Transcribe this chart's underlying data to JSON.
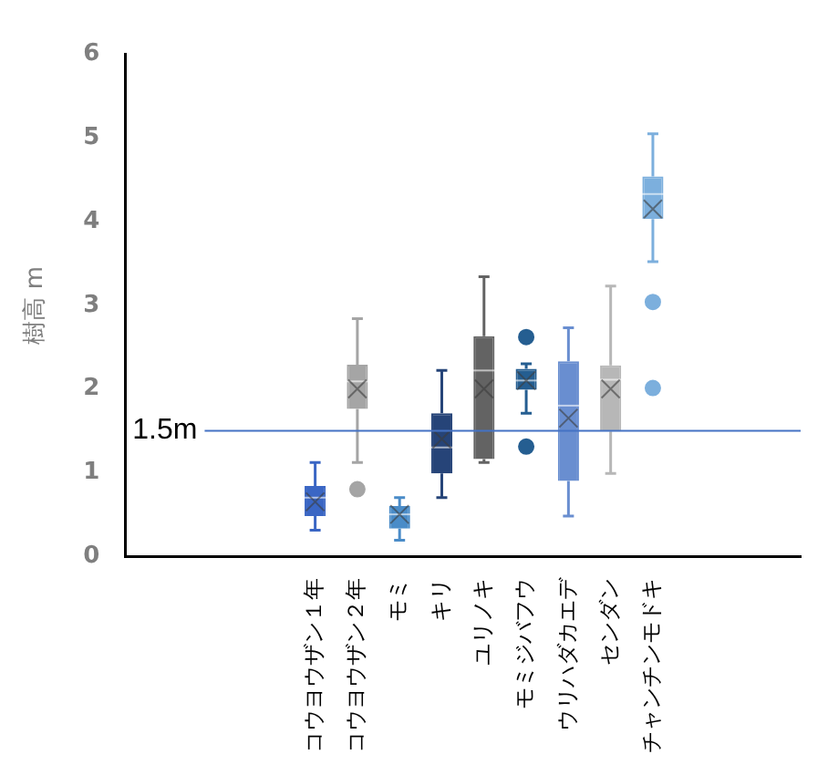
{
  "chart_data": {
    "type": "box",
    "ylabel": "樹高 m",
    "categories": [
      null,
      null,
      null,
      null,
      "コウヨウザン１年",
      "コウヨウザン２年",
      "モミ",
      "キリ",
      "ユリノキ",
      "モミジバフウ",
      "ウリハダカエデ",
      "センダン",
      "チャンチンモドキ",
      null,
      null,
      null
    ],
    "boxes": [
      null,
      null,
      null,
      null,
      {
        "low": 0.31,
        "q1": 0.48,
        "median": 0.7,
        "q3": 0.84,
        "high": 1.12,
        "mean": 0.65
      },
      {
        "low": 1.12,
        "q1": 1.76,
        "median": 2.09,
        "q3": 2.29,
        "high": 2.84,
        "mean": 2.0,
        "outliers": [
          0.8
        ]
      },
      {
        "low": 0.19,
        "q1": 0.33,
        "median": 0.5,
        "q3": 0.6,
        "high": 0.7,
        "mean": 0.5
      },
      {
        "low": 0.7,
        "q1": 0.99,
        "median": 1.3,
        "q3": 1.71,
        "high": 2.22,
        "mean": 1.4
      },
      {
        "low": 1.12,
        "q1": 1.16,
        "median": 2.22,
        "q3": 2.63,
        "high": 3.34,
        "mean": 2.0
      },
      {
        "low": 1.71,
        "q1": 1.99,
        "median": 2.1,
        "q3": 2.24,
        "high": 2.3,
        "mean": 2.1,
        "outliers": [
          2.62,
          1.31
        ]
      },
      {
        "low": 0.48,
        "q1": 0.9,
        "median": 1.8,
        "q3": 2.33,
        "high": 2.73,
        "mean": 1.65
      },
      {
        "low": 0.99,
        "q1": 1.49,
        "median": 2.11,
        "q3": 2.28,
        "high": 3.23,
        "mean": 2.0
      },
      {
        "low": 3.52,
        "q1": 4.03,
        "median": 4.33,
        "q3": 4.54,
        "high": 5.05,
        "mean": 4.15,
        "outliers": [
          3.04,
          2.01
        ]
      },
      null,
      null,
      null
    ],
    "colors": [
      null,
      null,
      null,
      null,
      "#3a66c4",
      "#a5a5a5",
      "#4a8cc8",
      "#264478",
      "#636363",
      "#255e91",
      "#698ed0",
      "#b7b7b7",
      "#7cafdd",
      null,
      null,
      null
    ],
    "ylim": [
      0,
      6
    ],
    "yticks": [
      0,
      1,
      2,
      3,
      4,
      5,
      6
    ],
    "ref_lines": [
      {
        "axis": "y",
        "value": 1.5,
        "label": "1.5m",
        "color": "#4472c4"
      }
    ],
    "grid": false,
    "legend": false
  }
}
